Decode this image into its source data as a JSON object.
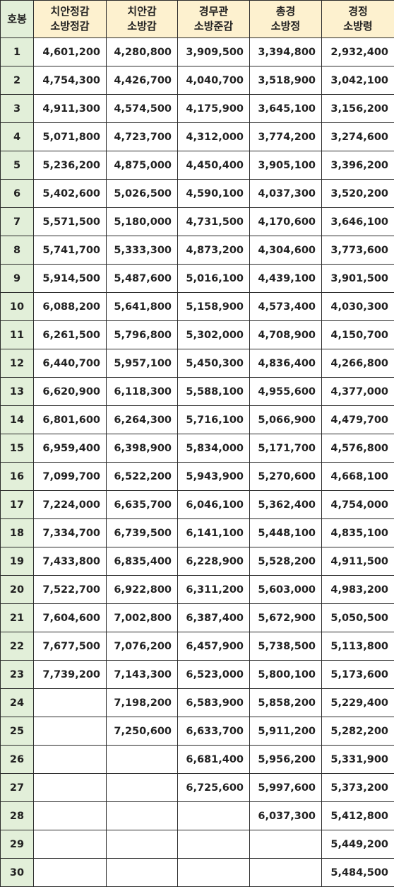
{
  "headers": [
    {
      "line1": "호봉",
      "line2": ""
    },
    {
      "line1": "치안정감",
      "line2": "소방정감"
    },
    {
      "line1": "치안감",
      "line2": "소방감"
    },
    {
      "line1": "경무관",
      "line2": "소방준감"
    },
    {
      "line1": "총경",
      "line2": "소방정"
    },
    {
      "line1": "경정",
      "line2": "소방령"
    }
  ],
  "rows": [
    [
      "1",
      "4,601,200",
      "4,280,800",
      "3,909,500",
      "3,394,800",
      "2,932,400"
    ],
    [
      "2",
      "4,754,300",
      "4,426,700",
      "4,040,700",
      "3,518,900",
      "3,042,100"
    ],
    [
      "3",
      "4,911,300",
      "4,574,500",
      "4,175,900",
      "3,645,100",
      "3,156,200"
    ],
    [
      "4",
      "5,071,800",
      "4,723,700",
      "4,312,000",
      "3,774,200",
      "3,274,600"
    ],
    [
      "5",
      "5,236,200",
      "4,875,000",
      "4,450,400",
      "3,905,100",
      "3,396,200"
    ],
    [
      "6",
      "5,402,600",
      "5,026,500",
      "4,590,100",
      "4,037,300",
      "3,520,200"
    ],
    [
      "7",
      "5,571,500",
      "5,180,000",
      "4,731,500",
      "4,170,600",
      "3,646,100"
    ],
    [
      "8",
      "5,741,700",
      "5,333,300",
      "4,873,200",
      "4,304,600",
      "3,773,600"
    ],
    [
      "9",
      "5,914,500",
      "5,487,600",
      "5,016,100",
      "4,439,100",
      "3,901,500"
    ],
    [
      "10",
      "6,088,200",
      "5,641,800",
      "5,158,900",
      "4,573,400",
      "4,030,300"
    ],
    [
      "11",
      "6,261,500",
      "5,796,800",
      "5,302,000",
      "4,708,900",
      "4,150,700"
    ],
    [
      "12",
      "6,440,700",
      "5,957,100",
      "5,450,300",
      "4,836,400",
      "4,266,800"
    ],
    [
      "13",
      "6,620,900",
      "6,118,300",
      "5,588,100",
      "4,955,600",
      "4,377,000"
    ],
    [
      "14",
      "6,801,600",
      "6,264,300",
      "5,716,100",
      "5,066,900",
      "4,479,700"
    ],
    [
      "15",
      "6,959,400",
      "6,398,900",
      "5,834,000",
      "5,171,700",
      "4,576,800"
    ],
    [
      "16",
      "7,099,700",
      "6,522,200",
      "5,943,900",
      "5,270,600",
      "4,668,100"
    ],
    [
      "17",
      "7,224,000",
      "6,635,700",
      "6,046,100",
      "5,362,400",
      "4,754,000"
    ],
    [
      "18",
      "7,334,700",
      "6,739,500",
      "6,141,100",
      "5,448,100",
      "4,835,100"
    ],
    [
      "19",
      "7,433,800",
      "6,835,400",
      "6,228,900",
      "5,528,200",
      "4,911,500"
    ],
    [
      "20",
      "7,522,700",
      "6,922,800",
      "6,311,200",
      "5,603,000",
      "4,983,200"
    ],
    [
      "21",
      "7,604,600",
      "7,002,800",
      "6,387,400",
      "5,672,900",
      "5,050,500"
    ],
    [
      "22",
      "7,677,500",
      "7,076,200",
      "6,457,900",
      "5,738,500",
      "5,113,800"
    ],
    [
      "23",
      "7,739,200",
      "7,143,300",
      "6,523,000",
      "5,800,100",
      "5,173,600"
    ],
    [
      "24",
      "",
      "7,198,200",
      "6,583,900",
      "5,858,200",
      "5,229,400"
    ],
    [
      "25",
      "",
      "7,250,600",
      "6,633,700",
      "5,911,200",
      "5,282,200"
    ],
    [
      "26",
      "",
      "",
      "6,681,400",
      "5,956,200",
      "5,331,900"
    ],
    [
      "27",
      "",
      "",
      "6,725,600",
      "5,997,600",
      "5,373,200"
    ],
    [
      "28",
      "",
      "",
      "",
      "6,037,300",
      "5,412,800"
    ],
    [
      "29",
      "",
      "",
      "",
      "",
      "5,449,200"
    ],
    [
      "30",
      "",
      "",
      "",
      "",
      "5,484,500"
    ]
  ],
  "colors": {
    "header_bg": "#fdf1cf",
    "grade_bg": "#e2efd9",
    "border": "#2b2b2b",
    "text": "#222222"
  }
}
